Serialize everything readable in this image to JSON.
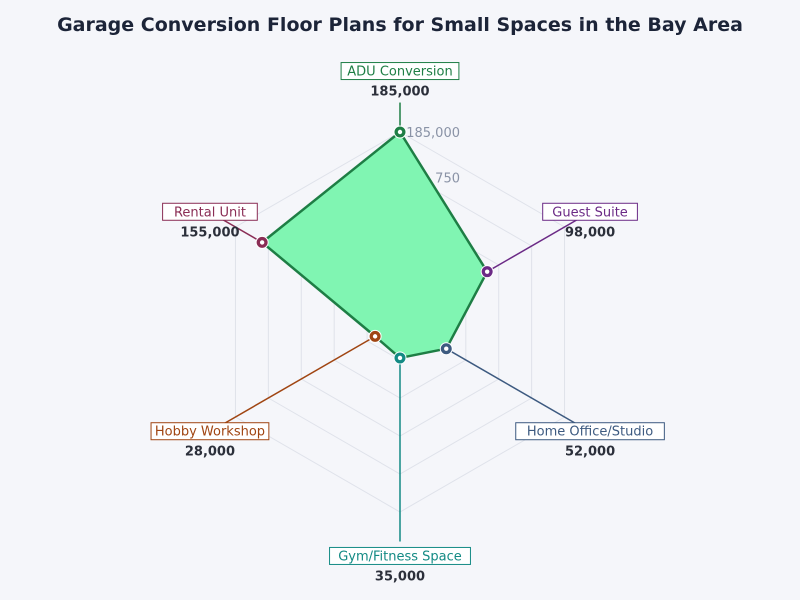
{
  "chart_data": {
    "type": "radar",
    "title": "Garage Conversion Floor Plans for Small Spaces in the Bay Area",
    "categories": [
      "ADU Conversion",
      "Guest Suite",
      "Home Office/Studio",
      "Gym/Fitness Space",
      "Hobby Workshop",
      "Rental Unit"
    ],
    "values": [
      185000,
      98000,
      52000,
      35000,
      28000,
      155000
    ],
    "value_labels": [
      "185,000",
      "98,000",
      "52,000",
      "35,000",
      "28,000",
      "155,000"
    ],
    "category_colors": [
      "#1e7e45",
      "#6b2a86",
      "#3d5a80",
      "#138a84",
      "#a04512",
      "#8a2d55"
    ],
    "axis_ticks": [
      "750",
      "185,000"
    ],
    "area_fill": "#80f5b2",
    "area_stroke": "#1e7e45",
    "grid": true
  }
}
